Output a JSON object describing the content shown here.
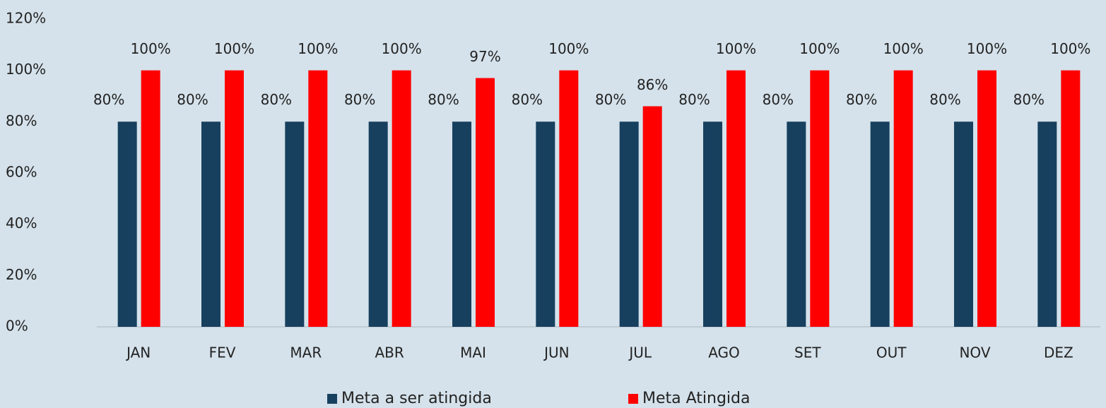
{
  "chart_data": {
    "type": "bar",
    "categories": [
      "JAN",
      "FEV",
      "MAR",
      "ABR",
      "MAI",
      "JUN",
      "JUL",
      "AGO",
      "SET",
      "OUT",
      "NOV",
      "DEZ"
    ],
    "series": [
      {
        "name": "Meta a ser atingida",
        "color": "#17405f",
        "values": [
          80,
          80,
          80,
          80,
          80,
          80,
          80,
          80,
          80,
          80,
          80,
          80
        ],
        "value_labels": [
          "80%",
          "80%",
          "80%",
          "80%",
          "80%",
          "80%",
          "80%",
          "80%",
          "80%",
          "80%",
          "80%",
          "80%"
        ]
      },
      {
        "name": "Meta Atingida",
        "color": "#ff0000",
        "values": [
          100,
          100,
          100,
          100,
          97,
          100,
          86,
          100,
          100,
          100,
          100,
          100
        ],
        "value_labels": [
          "100%",
          "100%",
          "100%",
          "100%",
          "97%",
          "100%",
          "86%",
          "100%",
          "100%",
          "100%",
          "100%",
          "100%"
        ]
      }
    ],
    "ylim": [
      0,
      120
    ],
    "yticks": [
      {
        "value": 0,
        "label": "0%"
      },
      {
        "value": 20,
        "label": "20%"
      },
      {
        "value": 40,
        "label": "40%"
      },
      {
        "value": 60,
        "label": "60%"
      },
      {
        "value": 80,
        "label": "80%"
      },
      {
        "value": 100,
        "label": "100%"
      },
      {
        "value": 120,
        "label": "120%"
      }
    ],
    "grid": false,
    "legend": "bottom"
  }
}
